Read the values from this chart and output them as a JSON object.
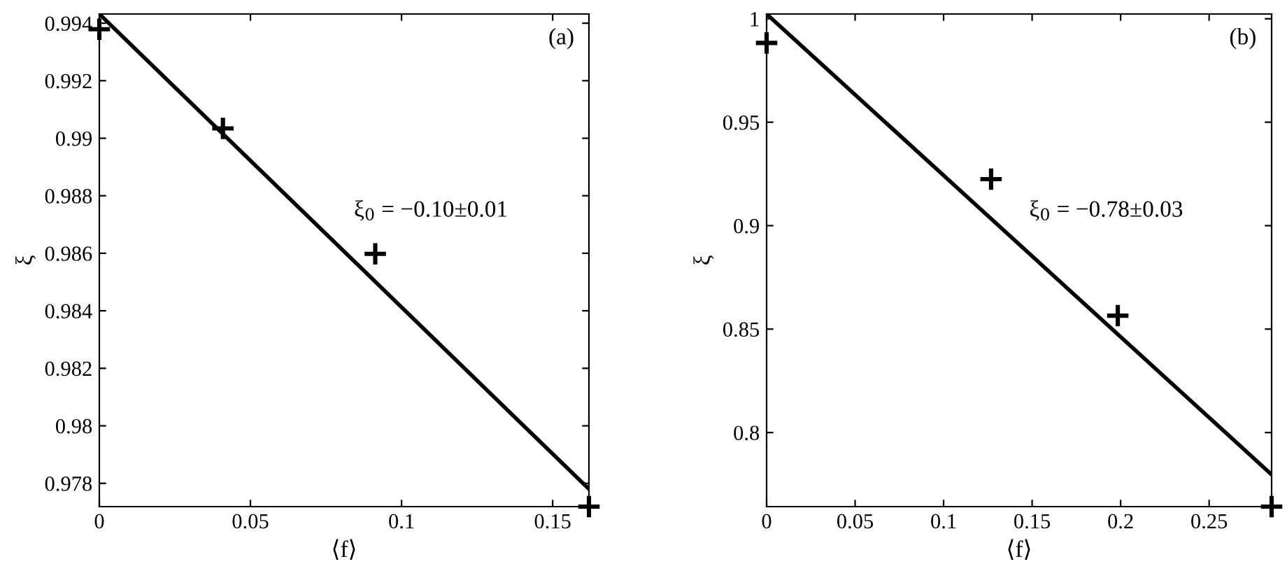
{
  "chart_data": [
    {
      "type": "scatter",
      "xlabel": "⟨f⟩",
      "ylabel": "ξ",
      "annotations": [
        "(a)",
        "ξ$_{0}$ = −0.10±0.01"
      ],
      "grid": false,
      "legend": false,
      "xlim": [
        0,
        0.162
      ],
      "xticks": [
        0,
        0.05,
        0.1,
        0.15
      ],
      "ylim": [
        0.97719,
        0.99432
      ],
      "yticks": [
        0.978,
        0.98,
        0.982,
        0.984,
        0.986,
        0.988,
        0.99,
        0.992,
        0.994
      ],
      "series": [
        {
          "color": "#000000",
          "marker": "cross",
          "x": [
            0,
            0.0409,
            0.0913,
            0.162
          ],
          "values": [
            0.99379,
            0.99034,
            0.98598,
            0.97719
          ]
        },
        {
          "type": "line",
          "color": "#000000",
          "line_style": "solid",
          "x": [
            0,
            0.162
          ],
          "values": [
            0.99432,
            0.9778
          ]
        }
      ]
    },
    {
      "type": "scatter",
      "xlabel": "⟨f⟩",
      "ylabel": "ξ",
      "annotations": [
        "(b)",
        "ξ$_{0}$ = −0.78±0.03"
      ],
      "grid": false,
      "legend": false,
      "xlim": [
        0,
        0.2853
      ],
      "xticks": [
        0,
        0.05,
        0.1,
        0.15,
        0.2,
        0.25
      ],
      "ylim": [
        0.7642,
        1.0023
      ],
      "yticks": [
        0.8,
        0.85,
        0.9,
        0.95,
        1
      ],
      "series": [
        {
          "color": "#000000",
          "marker": "cross",
          "x": [
            0,
            0.1268,
            0.1984,
            0.2853
          ],
          "values": [
            0.9883,
            0.9225,
            0.8565,
            0.7642
          ]
        },
        {
          "type": "line",
          "color": "#000000",
          "line_style": "solid",
          "x": [
            0,
            0.2853
          ],
          "values": [
            1.0023,
            0.7797
          ]
        }
      ]
    }
  ]
}
